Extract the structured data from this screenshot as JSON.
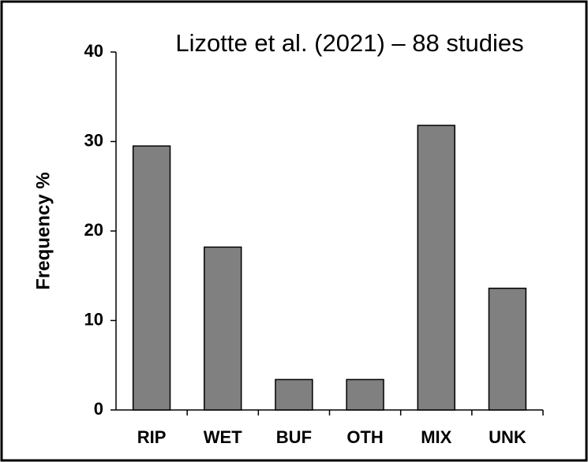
{
  "chart_data": {
    "type": "bar",
    "title": "Lizotte et al. (2021) – 88 studies",
    "ylabel": "Frequency %",
    "categories": [
      "RIP",
      "WET",
      "BUF",
      "OTH",
      "MIX",
      "UNK"
    ],
    "values": [
      29.5,
      18.2,
      3.4,
      3.4,
      31.8,
      13.6
    ],
    "color": "#808080",
    "ylim": [
      0,
      40
    ],
    "yticks": [
      0,
      10,
      20,
      30,
      40
    ],
    "grid": false
  }
}
